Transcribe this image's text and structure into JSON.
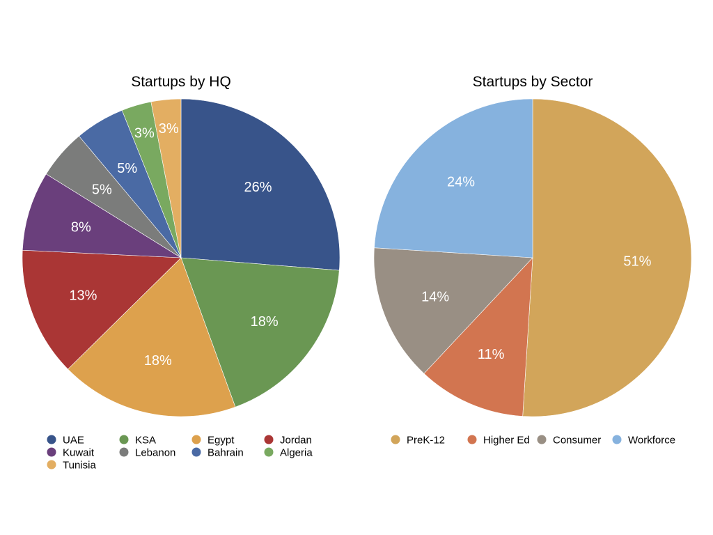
{
  "chart_data": [
    {
      "type": "pie",
      "title": "Startups by HQ",
      "legend_position": "bottom",
      "slices": [
        {
          "name": "UAE",
          "value": 26,
          "label": "26%",
          "color": "#38548A"
        },
        {
          "name": "KSA",
          "value": 18,
          "label": "18%",
          "color": "#6A9753"
        },
        {
          "name": "Egypt",
          "value": 18,
          "label": "18%",
          "color": "#DDA14D"
        },
        {
          "name": "Jordan",
          "value": 13,
          "label": "13%",
          "color": "#AA3635"
        },
        {
          "name": "Kuwait",
          "value": 8,
          "label": "8%",
          "color": "#6A3F7C"
        },
        {
          "name": "Lebanon",
          "value": 5,
          "label": "5%",
          "color": "#7B7C7B"
        },
        {
          "name": "Bahrain",
          "value": 5,
          "label": "5%",
          "color": "#4A6AA4"
        },
        {
          "name": "Algeria",
          "value": 3,
          "label": "3%",
          "color": "#79A960"
        },
        {
          "name": "Tunisia",
          "value": 3,
          "label": "3%",
          "color": "#E3AE62"
        }
      ]
    },
    {
      "type": "pie",
      "title": "Startups by Sector",
      "legend_position": "bottom",
      "slices": [
        {
          "name": "PreK-12",
          "value": 51,
          "label": "51%",
          "color": "#D2A55A"
        },
        {
          "name": "Higher Ed",
          "value": 11,
          "label": "11%",
          "color": "#D27550"
        },
        {
          "name": "Consumer",
          "value": 14,
          "label": "14%",
          "color": "#998F84"
        },
        {
          "name": "Workforce",
          "value": 24,
          "label": "24%",
          "color": "#86B2DE"
        }
      ]
    }
  ]
}
